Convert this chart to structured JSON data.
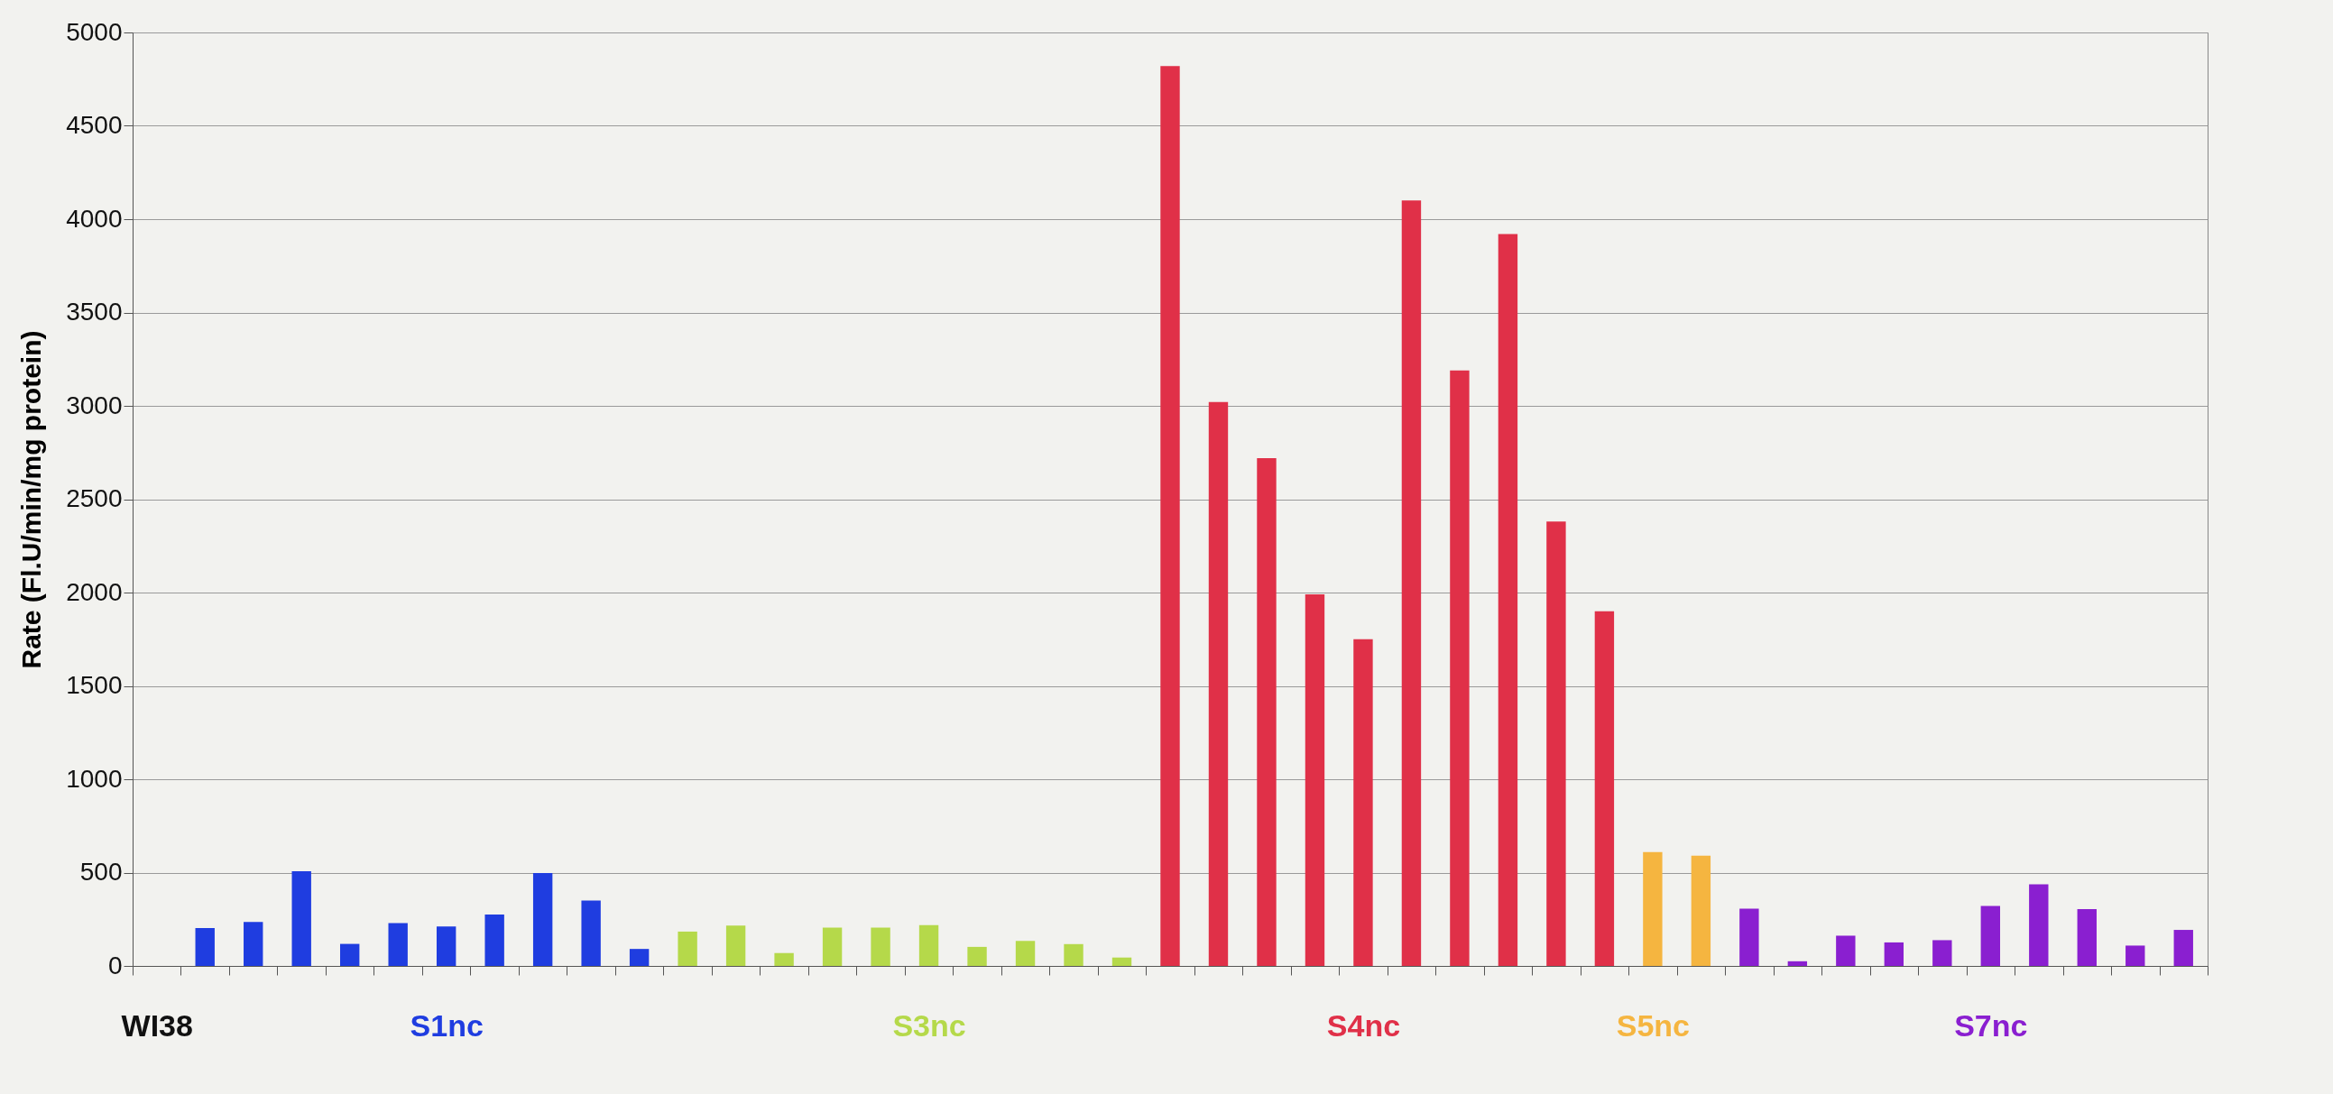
{
  "chart_data": {
    "type": "bar",
    "ylabel": "Rate (Fl.U/min/mg protein)",
    "categories": [
      "WI38",
      null,
      null,
      null,
      null,
      null,
      "S1nc",
      null,
      null,
      null,
      null,
      null,
      null,
      null,
      null,
      null,
      "S3nc",
      null,
      null,
      null,
      null,
      null,
      null,
      null,
      null,
      "S4nc",
      null,
      null,
      null,
      null,
      null,
      "S5nc",
      null,
      null,
      null,
      null,
      null,
      null,
      "S7nc",
      null,
      null,
      null,
      null
    ],
    "values": [
      null,
      203,
      235,
      507,
      118,
      230,
      211,
      275,
      497,
      350,
      91,
      184,
      216,
      69,
      205,
      205,
      218,
      102,
      134,
      117,
      45,
      4820,
      3020,
      2720,
      1990,
      1750,
      4100,
      3190,
      3920,
      2380,
      1900,
      610,
      590,
      307,
      25,
      162,
      126,
      138,
      321,
      437,
      304,
      109,
      193
    ],
    "colors": [
      "#111111",
      "#1f3de0",
      "#1f3de0",
      "#1f3de0",
      "#1f3de0",
      "#1f3de0",
      "#1f3de0",
      "#1f3de0",
      "#1f3de0",
      "#1f3de0",
      "#1f3de0",
      "#b5d94a",
      "#b5d94a",
      "#b5d94a",
      "#b5d94a",
      "#b5d94a",
      "#b5d94a",
      "#b5d94a",
      "#b5d94a",
      "#b5d94a",
      "#b5d94a",
      "#e03048",
      "#e03048",
      "#e03048",
      "#e03048",
      "#e03048",
      "#e03048",
      "#e03048",
      "#e03048",
      "#e03048",
      "#e03048",
      "#f5b540",
      "#f5b540",
      "#8a1fd0",
      "#8a1fd0",
      "#8a1fd0",
      "#8a1fd0",
      "#8a1fd0",
      "#8a1fd0",
      "#8a1fd0",
      "#8a1fd0",
      "#8a1fd0",
      "#8a1fd0"
    ],
    "ylim": [
      0,
      5000
    ],
    "yticks": [
      0,
      500,
      1000,
      1500,
      2000,
      2500,
      3000,
      3500,
      4000,
      4500,
      5000
    ],
    "grid": "y"
  }
}
